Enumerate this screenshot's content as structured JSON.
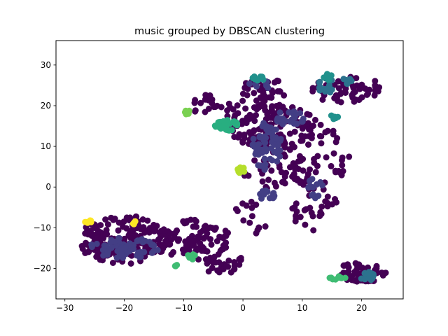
{
  "chart_data": {
    "type": "scatter",
    "title": "music grouped by DBSCAN clustering",
    "xlabel": "",
    "ylabel": "",
    "xlim": [
      -31.5,
      27
    ],
    "ylim": [
      -27.5,
      36
    ],
    "xticks": [
      -30,
      -20,
      -10,
      0,
      10,
      20
    ],
    "yticks": [
      -20,
      -10,
      0,
      10,
      20,
      30
    ],
    "grid": false,
    "legend": "none",
    "series": [
      {
        "label_id": -1,
        "color": "#440154",
        "clusters": [
          {
            "cx": 5,
            "cy": 15,
            "rx": 7.5,
            "ry": 5.5,
            "n": 150
          },
          {
            "cx": 17.5,
            "cy": 24,
            "rx": 6,
            "ry": 3.5,
            "n": 55
          },
          {
            "cx": 3.5,
            "cy": 24,
            "rx": 4,
            "ry": 3,
            "n": 35
          },
          {
            "cx": -4,
            "cy": 20,
            "rx": 5,
            "ry": 3,
            "n": 25
          },
          {
            "cx": 12,
            "cy": 8,
            "rx": 6,
            "ry": 8,
            "n": 55
          },
          {
            "cx": 6,
            "cy": 4,
            "rx": 6,
            "ry": 5,
            "n": 40
          },
          {
            "cx": 12,
            "cy": -5,
            "rx": 4,
            "ry": 6,
            "n": 30
          },
          {
            "cx": -20,
            "cy": -13,
            "rx": 8,
            "ry": 6,
            "n": 180
          },
          {
            "cx": -8,
            "cy": -13,
            "rx": 6,
            "ry": 5,
            "n": 90
          },
          {
            "cx": -3,
            "cy": -19,
            "rx": 4,
            "ry": 2.5,
            "n": 30
          },
          {
            "cx": 20,
            "cy": -21,
            "rx": 4.5,
            "ry": 2.5,
            "n": 60
          },
          {
            "cx": 1,
            "cy": -9,
            "rx": 3,
            "ry": 6,
            "n": 15
          }
        ]
      },
      {
        "label_id": 0,
        "color": "#433e85",
        "clusters": [
          {
            "cx": -20,
            "cy": -15,
            "rx": 6,
            "ry": 2.5,
            "n": 70
          },
          {
            "cx": 4,
            "cy": 10,
            "rx": 2.5,
            "ry": 6,
            "n": 60
          },
          {
            "cx": 8,
            "cy": 17,
            "rx": 2.5,
            "ry": 2,
            "n": 25
          },
          {
            "cx": 4,
            "cy": -2,
            "rx": 1.5,
            "ry": 1.2,
            "n": 15
          },
          {
            "cx": 12,
            "cy": 0,
            "rx": 1.5,
            "ry": 3,
            "n": 15
          },
          {
            "cx": 3,
            "cy": 25,
            "rx": 2,
            "ry": 1.2,
            "n": 8
          }
        ]
      },
      {
        "label_id": 1,
        "color": "#2c728e",
        "clusters": [
          {
            "cx": 21,
            "cy": -22,
            "rx": 1.2,
            "ry": 1.2,
            "n": 20
          },
          {
            "cx": 14,
            "cy": 25,
            "rx": 1.5,
            "ry": 2,
            "n": 15
          },
          {
            "cx": 17.5,
            "cy": 26,
            "rx": 1,
            "ry": 1,
            "n": 6
          }
        ]
      },
      {
        "label_id": 2,
        "color": "#21918c",
        "clusters": [
          {
            "cx": 14.2,
            "cy": 27,
            "rx": 1.2,
            "ry": 1,
            "n": 12
          },
          {
            "cx": 2.5,
            "cy": 26.5,
            "rx": 1,
            "ry": 1,
            "n": 10
          },
          {
            "cx": 15.2,
            "cy": 17.3,
            "rx": 0.9,
            "ry": 0.6,
            "n": 6
          }
        ]
      },
      {
        "label_id": 3,
        "color": "#28ae80",
        "clusters": [
          {
            "cx": -2.5,
            "cy": 15.2,
            "rx": 2.2,
            "ry": 1.3,
            "n": 30
          }
        ]
      },
      {
        "label_id": 4,
        "color": "#3fbc73",
        "clusters": [
          {
            "cx": 16,
            "cy": -22.3,
            "rx": 1.4,
            "ry": 0.5,
            "n": 8
          },
          {
            "cx": -8.5,
            "cy": -17,
            "rx": 0.8,
            "ry": 0.8,
            "n": 8
          },
          {
            "cx": -11.5,
            "cy": -19.3,
            "rx": 0.4,
            "ry": 0.3,
            "n": 3
          }
        ]
      },
      {
        "label_id": 5,
        "color": "#7ad151",
        "clusters": [
          {
            "cx": -9.5,
            "cy": 18.5,
            "rx": 0.6,
            "ry": 0.6,
            "n": 8
          }
        ]
      },
      {
        "label_id": 6,
        "color": "#b5de2b",
        "clusters": [
          {
            "cx": -0.3,
            "cy": 4.2,
            "rx": 0.6,
            "ry": 0.8,
            "n": 10
          }
        ]
      },
      {
        "label_id": 7,
        "color": "#fde725",
        "clusters": [
          {
            "cx": -26.2,
            "cy": -8.5,
            "rx": 0.7,
            "ry": 0.5,
            "n": 8
          },
          {
            "cx": -18.5,
            "cy": -8.5,
            "rx": 0.4,
            "ry": 0.7,
            "n": 5
          }
        ]
      }
    ]
  }
}
